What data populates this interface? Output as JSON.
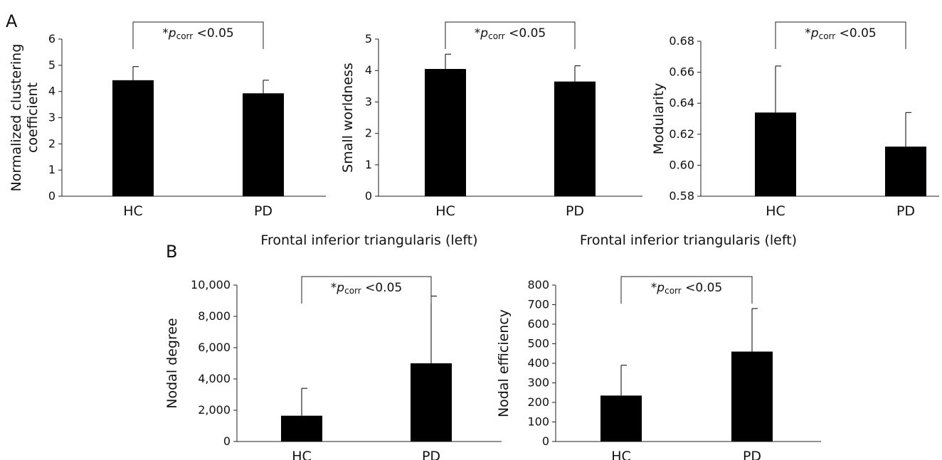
{
  "panels": [
    {
      "label": "A"
    },
    {
      "label": "B"
    }
  ],
  "chart_data": [
    {
      "type": "bar",
      "panel": "A",
      "title": "",
      "categories": [
        "HC",
        "PD"
      ],
      "values": [
        4.43,
        3.93
      ],
      "errors": [
        0.52,
        0.5
      ],
      "ylabel": "Normalized clustering coefficient",
      "ylabel_lines": [
        "Normalized clustering",
        "coefficient"
      ],
      "ylim": [
        0,
        6
      ],
      "yticks": [
        "0",
        "1",
        "2",
        "3",
        "4",
        "5",
        "6"
      ],
      "significance": {
        "star": "*",
        "p": "p",
        "sub": "corr",
        "rest": " <0.05"
      }
    },
    {
      "type": "bar",
      "panel": "A",
      "title": "",
      "categories": [
        "HC",
        "PD"
      ],
      "values": [
        4.05,
        3.65
      ],
      "errors": [
        0.47,
        0.5
      ],
      "ylabel": "Small worldness",
      "ylabel_lines": [
        "Small worldness"
      ],
      "ylim": [
        0,
        5
      ],
      "yticks": [
        "0",
        "1",
        "2",
        "3",
        "4",
        "5"
      ],
      "significance": {
        "star": "*",
        "p": "p",
        "sub": "corr",
        "rest": " <0.05"
      }
    },
    {
      "type": "bar",
      "panel": "A",
      "title": "",
      "categories": [
        "HC",
        "PD"
      ],
      "values": [
        0.634,
        0.612
      ],
      "errors": [
        0.03,
        0.022
      ],
      "ylabel": "Modularity",
      "ylabel_lines": [
        "Modularity"
      ],
      "ylim": [
        0.58,
        0.68
      ],
      "yticks": [
        "0.58",
        "0.60",
        "0.62",
        "0.64",
        "0.66",
        "0.68"
      ],
      "significance": {
        "star": "*",
        "p": "p",
        "sub": "corr",
        "rest": " <0.05"
      }
    },
    {
      "type": "bar",
      "panel": "B",
      "title": "Frontal inferior triangularis (left)",
      "categories": [
        "HC",
        "PD"
      ],
      "values": [
        1650,
        5000
      ],
      "errors": [
        1750,
        4300
      ],
      "ylabel": "Nodal degree",
      "ylabel_lines": [
        "Nodal degree"
      ],
      "ylim": [
        0,
        10000
      ],
      "yticks": [
        "0",
        "2,000",
        "4,000",
        "6,000",
        "8,000",
        "10,000"
      ],
      "significance": {
        "star": "*",
        "p": "p",
        "sub": "corr",
        "rest": " <0.05"
      }
    },
    {
      "type": "bar",
      "panel": "B",
      "title": "Frontal inferior triangularis (left)",
      "categories": [
        "HC",
        "PD"
      ],
      "values": [
        235,
        460
      ],
      "errors": [
        155,
        220
      ],
      "ylabel": "Nodal efficiency",
      "ylabel_lines": [
        "Nodal efficiency"
      ],
      "ylim": [
        0,
        800
      ],
      "yticks": [
        "0",
        "100",
        "200",
        "300",
        "400",
        "500",
        "600",
        "700",
        "800"
      ],
      "significance": {
        "star": "*",
        "p": "p",
        "sub": "corr",
        "rest": " <0.05"
      }
    }
  ]
}
